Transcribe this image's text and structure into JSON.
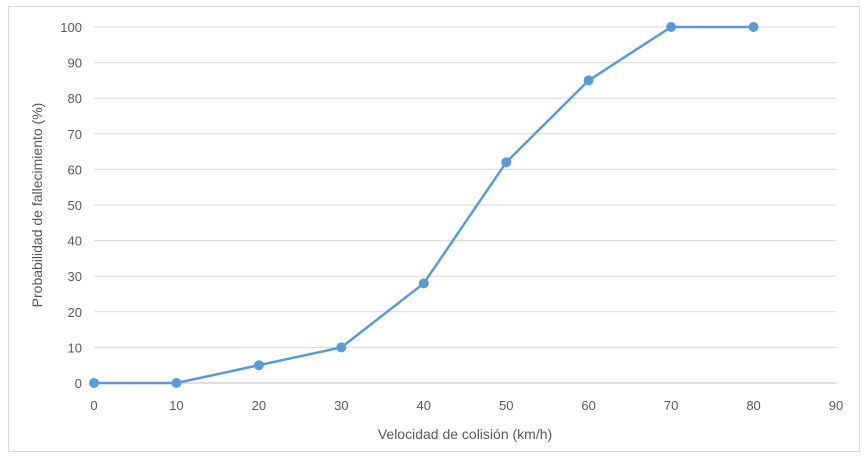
{
  "chart_data": {
    "type": "line",
    "title": "",
    "xlabel": "Velocidad de colisión (km/h)",
    "ylabel": "Probabilidad de fallecimiento (%)",
    "x": [
      0,
      10,
      20,
      30,
      40,
      50,
      60,
      70,
      80
    ],
    "series": [
      {
        "values": [
          0,
          0,
          5,
          10,
          28,
          62,
          85,
          100,
          100
        ]
      }
    ],
    "xlim": [
      0,
      90
    ],
    "ylim": [
      0,
      100
    ],
    "xticks": [
      "0",
      "10",
      "20",
      "30",
      "40",
      "50",
      "60",
      "70",
      "80",
      "90"
    ],
    "yticks": [
      "0",
      "10",
      "20",
      "30",
      "40",
      "50",
      "60",
      "70",
      "80",
      "90",
      "100"
    ],
    "grid": "horizontal",
    "legend": "none",
    "colors": {
      "series": "#5b9bd5",
      "grid": "#d9d9d9",
      "axis": "#bfbfbf",
      "text": "#595959"
    }
  }
}
